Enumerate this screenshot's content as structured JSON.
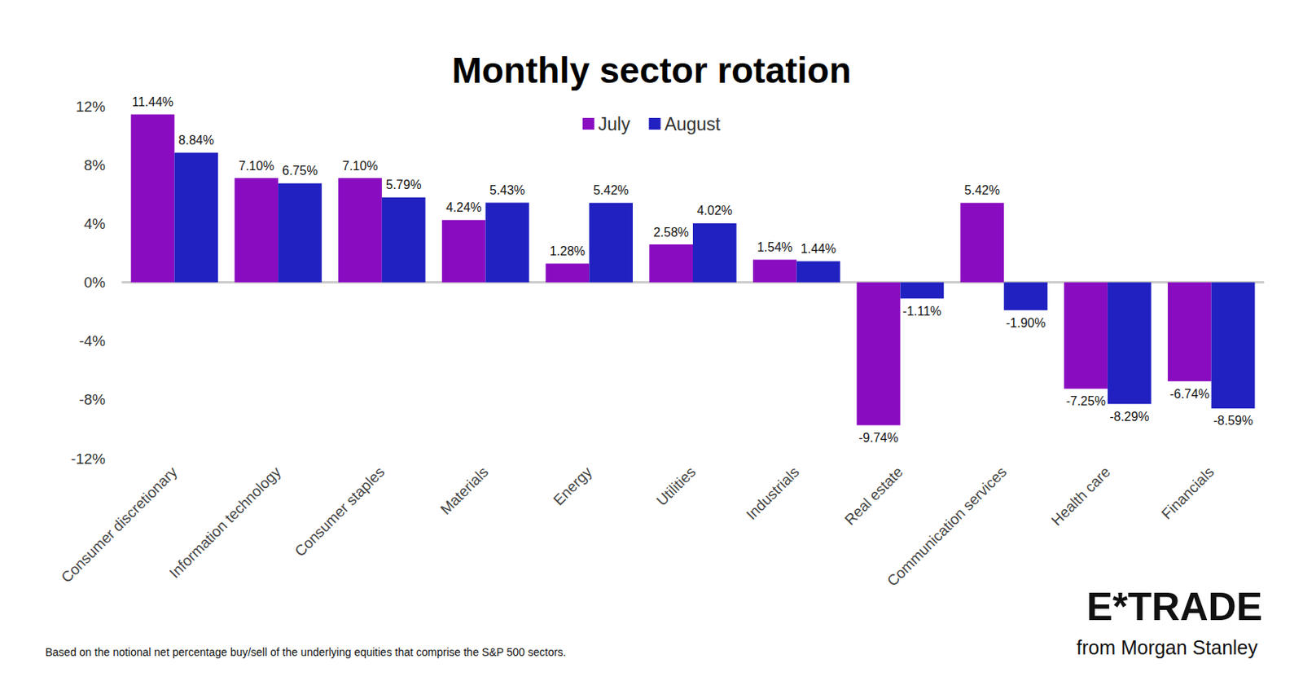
{
  "chart_data": {
    "type": "bar",
    "title": "Monthly sector rotation",
    "categories": [
      "Consumer discretionary",
      "Information technology",
      "Consumer staples",
      "Materials",
      "Energy",
      "Utilities",
      "Industrials",
      "Real estate",
      "Communication services",
      "Health care",
      "Financials"
    ],
    "series": [
      {
        "name": "July",
        "color": "#8a0cc0",
        "values": [
          11.44,
          7.1,
          7.1,
          4.24,
          1.28,
          2.58,
          1.54,
          -9.74,
          5.42,
          -7.25,
          -6.74
        ],
        "value_labels": [
          "11.44%",
          "7.10%",
          "7.10%",
          "4.24%",
          "1.28%",
          "2.58%",
          "1.54%",
          "-9.74%",
          "5.42%",
          "-7.25%",
          "-6.74%"
        ]
      },
      {
        "name": "August",
        "color": "#2121c1",
        "values": [
          8.84,
          6.75,
          5.79,
          5.43,
          5.42,
          4.02,
          1.44,
          -1.11,
          -1.9,
          -8.29,
          -8.59
        ],
        "value_labels": [
          "8.84%",
          "6.75%",
          "5.79%",
          "5.43%",
          "5.42%",
          "4.02%",
          "1.44%",
          "-1.11%",
          "-1.90%",
          "-8.29%",
          "-8.59%"
        ]
      }
    ],
    "ylim": [
      -12,
      12
    ],
    "yticks": [
      {
        "value": -12,
        "label": "-12%"
      },
      {
        "value": -8,
        "label": "-8%"
      },
      {
        "value": -4,
        "label": "-4%"
      },
      {
        "value": 0,
        "label": "0%"
      },
      {
        "value": 4,
        "label": "4%"
      },
      {
        "value": 8,
        "label": "8%"
      },
      {
        "value": 12,
        "label": "12%"
      }
    ],
    "grid": false,
    "legend": "top",
    "data_labels": true,
    "annotations": [
      "Based on the notional net percentage buy/sell of the underlying equities that comprise the S&P 500 sectors.",
      "E*TRADE",
      "from Morgan Stanley"
    ]
  }
}
